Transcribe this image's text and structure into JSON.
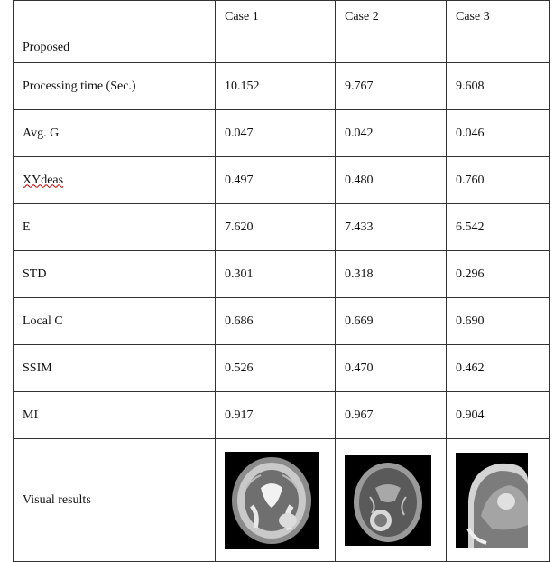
{
  "table": {
    "header": [
      "Proposed",
      "Case 1",
      "Case 2",
      "Case 3"
    ],
    "rows": [
      {
        "label": "Processing time (Sec.)",
        "values": [
          "10.152",
          "9.767",
          "9.608"
        ]
      },
      {
        "label": "Avg. G",
        "values": [
          "0.047",
          "0.042",
          "0.046"
        ]
      },
      {
        "label": "XYdeas",
        "values": [
          "0.497",
          "0.480",
          "0.760"
        ]
      },
      {
        "label": "E",
        "values": [
          "7.620",
          "7.433",
          "6.542"
        ]
      },
      {
        "label": "STD",
        "values": [
          "0.301",
          "0.318",
          "0.296"
        ]
      },
      {
        "label": "Local C",
        "values": [
          "0.686",
          "0.669",
          "0.690"
        ]
      },
      {
        "label": "SSIM",
        "values": [
          "0.526",
          "0.470",
          "0.462"
        ]
      },
      {
        "label": "MI",
        "values": [
          "0.917",
          "0.967",
          "0.904"
        ]
      }
    ],
    "visual_label": "Visual results"
  },
  "colors": {
    "border": "#333333",
    "spellcheck": "#c00000",
    "image_bg": "#000000"
  }
}
